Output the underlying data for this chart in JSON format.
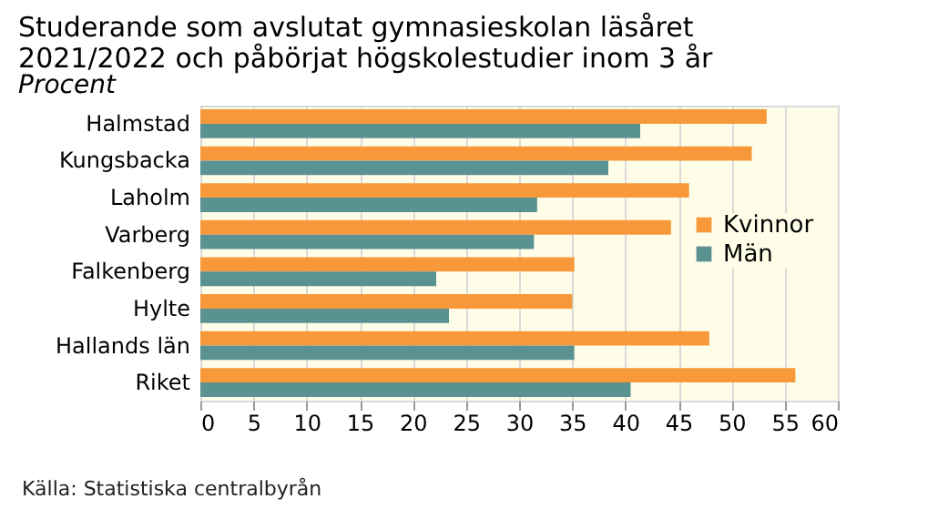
{
  "chart_data": {
    "type": "bar",
    "orientation": "horizontal",
    "title": "Studerande som avslutat gymnasieskolan läsåret\n2021/2022 och påbörjat högskolestudier inom 3 år",
    "subtitle": "Procent",
    "categories": [
      "Halmstad",
      "Kungsbacka",
      "Laholm",
      "Varberg",
      "Falkenberg",
      "Hylte",
      "Hallands län",
      "Riket"
    ],
    "series": [
      {
        "name": "Kvinnor",
        "color": "#f7993a",
        "values": [
          53.3,
          51.9,
          46.0,
          44.3,
          35.2,
          35.0,
          47.9,
          56.0
        ]
      },
      {
        "name": "Män",
        "color": "#5a9191",
        "values": [
          41.4,
          38.4,
          31.7,
          31.4,
          22.2,
          23.4,
          35.2,
          40.5
        ]
      }
    ],
    "xlim": [
      0,
      60
    ],
    "xticks": [
      0,
      5,
      10,
      15,
      20,
      25,
      30,
      35,
      40,
      45,
      50,
      55,
      60
    ],
    "grid": "x",
    "legend": "right",
    "annotations": [
      "Källa: Statistiska centralbyrån"
    ]
  }
}
